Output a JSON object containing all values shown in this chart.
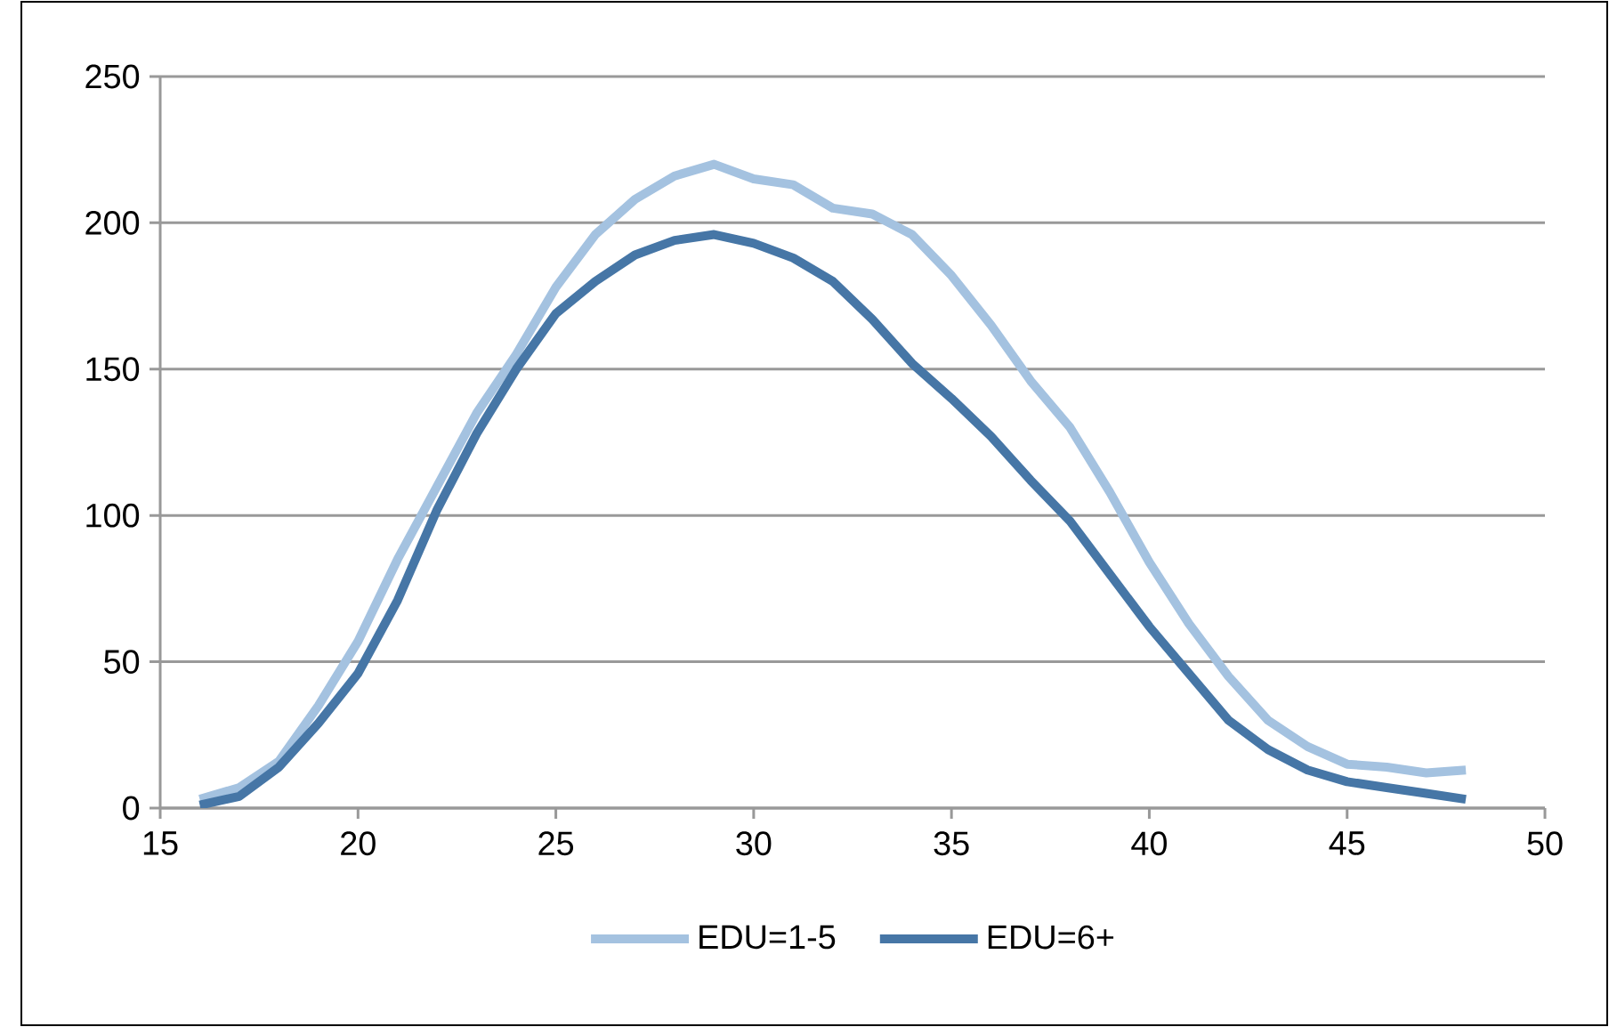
{
  "chart_data": {
    "type": "line",
    "x": [
      16,
      17,
      18,
      19,
      20,
      21,
      22,
      23,
      24,
      25,
      26,
      27,
      28,
      29,
      30,
      31,
      32,
      33,
      34,
      35,
      36,
      37,
      38,
      39,
      40,
      41,
      42,
      43,
      44,
      45,
      46,
      47,
      48
    ],
    "series": [
      {
        "name": "EDU=1-5",
        "color": "#a4c2e0",
        "values": [
          3,
          7,
          16,
          35,
          57,
          85,
          110,
          135,
          155,
          178,
          196,
          208,
          216,
          220,
          215,
          213,
          205,
          203,
          196,
          182,
          165,
          146,
          130,
          108,
          84,
          63,
          45,
          30,
          21,
          15,
          14,
          12,
          13
        ]
      },
      {
        "name": "EDU=6+",
        "color": "#4676a6",
        "values": [
          1,
          4,
          14,
          29,
          46,
          71,
          102,
          128,
          150,
          169,
          180,
          189,
          194,
          196,
          193,
          188,
          180,
          167,
          152,
          140,
          127,
          112,
          98,
          80,
          62,
          46,
          30,
          20,
          13,
          9,
          7,
          5,
          3
        ]
      }
    ],
    "xlim": [
      15,
      50
    ],
    "xticks": [
      15,
      20,
      25,
      30,
      35,
      40,
      45,
      50
    ],
    "ylim": [
      0,
      250
    ],
    "yticks": [
      0,
      50,
      100,
      150,
      200,
      250
    ],
    "grid": "y",
    "legend": "bottom",
    "marker": "none",
    "line_style": "solid"
  }
}
